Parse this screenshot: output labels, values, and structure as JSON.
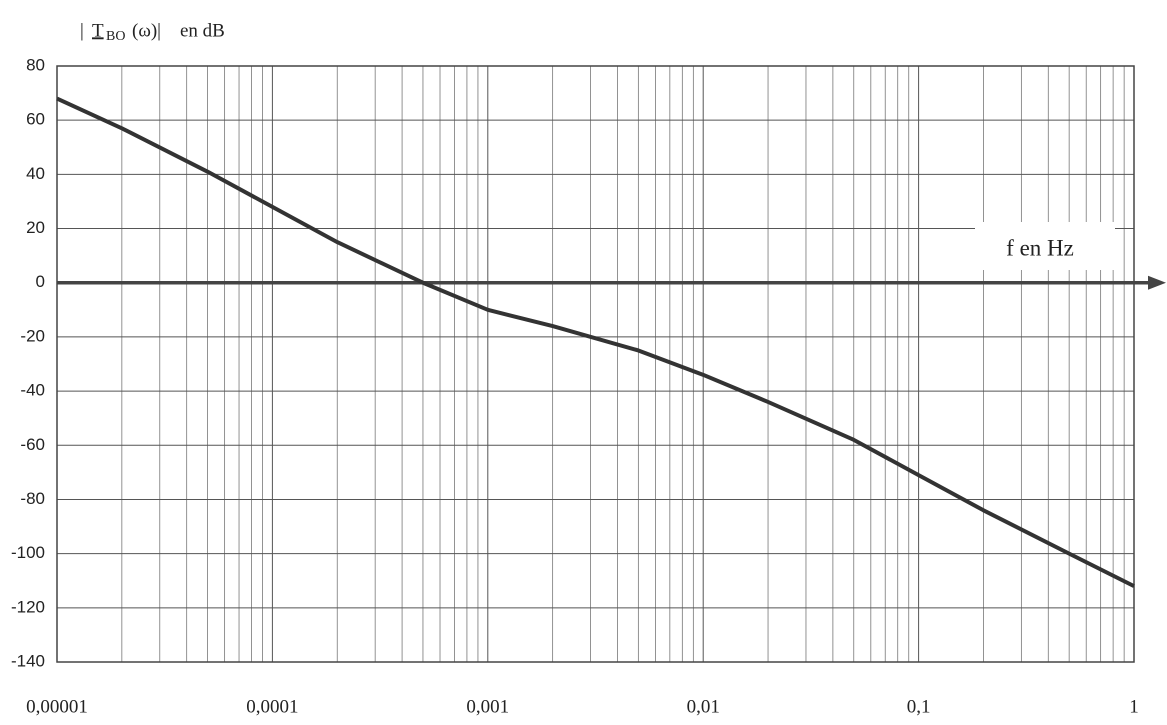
{
  "chart_data": {
    "type": "line",
    "ylabel": {
      "symbol": "T",
      "subscript": "BO",
      "rest": "(ω)|",
      "unit": "en dB"
    },
    "xlabel": "f en Hz",
    "x": [
      1e-05,
      2e-05,
      5e-05,
      0.0001,
      0.0002,
      0.0005,
      0.001,
      0.002,
      0.005,
      0.01,
      0.02,
      0.05,
      0.1,
      0.2,
      0.5,
      1
    ],
    "series": [
      {
        "name": "TBO",
        "color": "#333333",
        "values": [
          68,
          57,
          41,
          28,
          15,
          0,
          -10,
          -16,
          -25,
          -34,
          -44,
          -58,
          -71,
          -84,
          -100,
          -112
        ]
      }
    ],
    "xscale": "log",
    "xlim": [
      1e-05,
      1
    ],
    "xticks": [
      {
        "value": 1e-05,
        "label": "0,00001"
      },
      {
        "value": 0.0001,
        "label": "0,0001"
      },
      {
        "value": 0.001,
        "label": "0,001"
      },
      {
        "value": 0.01,
        "label": "0,01"
      },
      {
        "value": 0.1,
        "label": "0,1"
      },
      1
    ],
    "ylim": [
      -140,
      80
    ],
    "yticks": [
      -140,
      -120,
      -100,
      -80,
      -60,
      -40,
      -20,
      0,
      20,
      40,
      60,
      80
    ],
    "grid": true,
    "minor_grid": true
  }
}
